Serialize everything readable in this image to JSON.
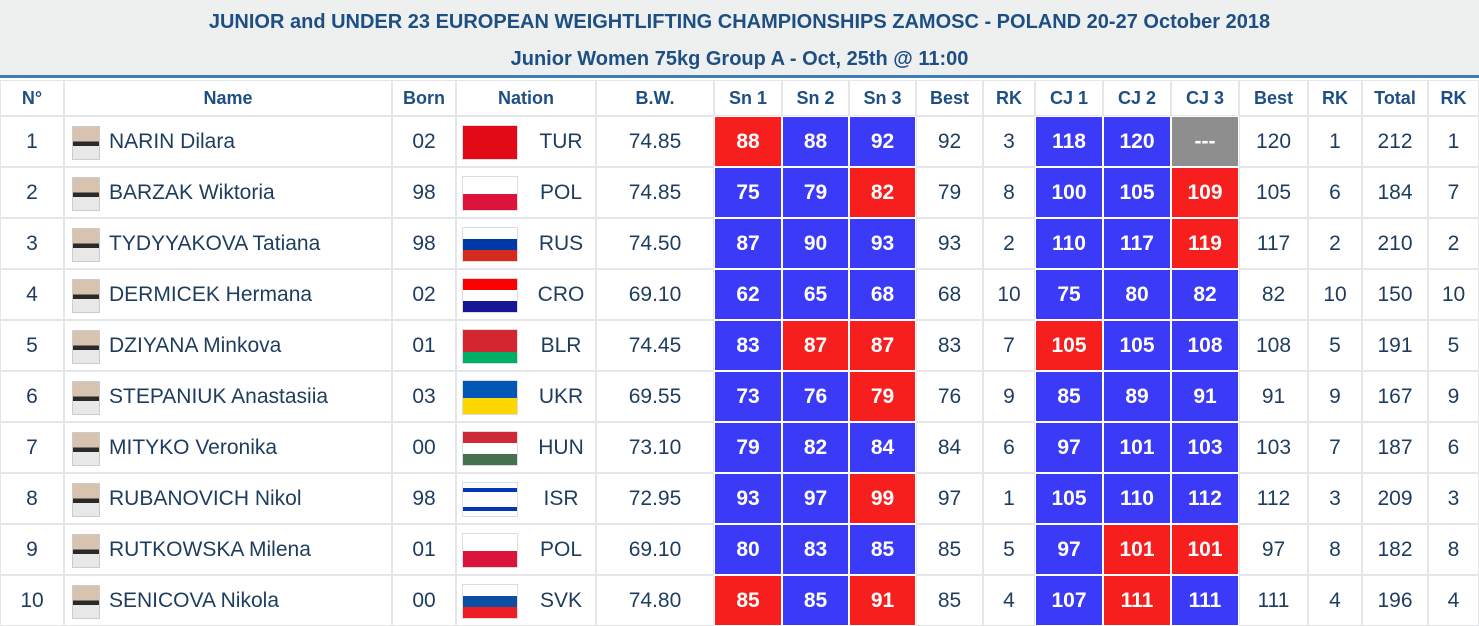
{
  "header": {
    "title": "JUNIOR and UNDER 23 EUROPEAN WEIGHTLIFTING CHAMPIONSHIPS ZAMOSC - POLAND 20-27 October 2018",
    "subtitle": "Junior Women 75kg Group A - Oct, 25th @ 11:00"
  },
  "colors": {
    "good": "#3b3bf7",
    "bad": "#f71e1e",
    "none": "#8e8e8e"
  },
  "table": {
    "columns": [
      "N°",
      "Name",
      "Born",
      "Nation",
      "B.W.",
      "Sn 1",
      "Sn 2",
      "Sn 3",
      "Best",
      "RK",
      "CJ 1",
      "CJ 2",
      "CJ 3",
      "Best",
      "RK",
      "Total",
      "RK"
    ],
    "rows": [
      {
        "cells": [
          "1",
          "NARIN Dilara",
          "02",
          "TUR",
          "74.85",
          "88",
          "88",
          "92",
          "92",
          "3",
          "118",
          "120",
          "---",
          "120",
          "1",
          "212",
          "1"
        ],
        "status": [
          "bad",
          "good",
          "good",
          "good",
          "good",
          "none"
        ],
        "flag": [
          "#e30a17"
        ]
      },
      {
        "cells": [
          "2",
          "BARZAK Wiktoria",
          "98",
          "POL",
          "74.85",
          "75",
          "79",
          "82",
          "79",
          "8",
          "100",
          "105",
          "109",
          "105",
          "6",
          "184",
          "7"
        ],
        "status": [
          "good",
          "good",
          "bad",
          "good",
          "good",
          "bad"
        ],
        "flag": [
          "#ffffff",
          "#dc143c"
        ]
      },
      {
        "cells": [
          "3",
          "TYDYYAKOVA Tatiana",
          "98",
          "RUS",
          "74.50",
          "87",
          "90",
          "93",
          "93",
          "2",
          "110",
          "117",
          "119",
          "117",
          "2",
          "210",
          "2"
        ],
        "status": [
          "good",
          "good",
          "good",
          "good",
          "good",
          "bad"
        ],
        "flag": [
          "#ffffff",
          "#0039a6",
          "#d52b1e"
        ]
      },
      {
        "cells": [
          "4",
          "DERMICEK Hermana",
          "02",
          "CRO",
          "69.10",
          "62",
          "65",
          "68",
          "68",
          "10",
          "75",
          "80",
          "82",
          "82",
          "10",
          "150",
          "10"
        ],
        "status": [
          "good",
          "good",
          "good",
          "good",
          "good",
          "good"
        ],
        "flag": [
          "#ff0000",
          "#ffffff",
          "#171796"
        ]
      },
      {
        "cells": [
          "5",
          "DZIYANA Minkova",
          "01",
          "BLR",
          "74.45",
          "83",
          "87",
          "87",
          "83",
          "7",
          "105",
          "105",
          "108",
          "108",
          "5",
          "191",
          "5"
        ],
        "status": [
          "good",
          "bad",
          "bad",
          "bad",
          "good",
          "good"
        ],
        "flag": [
          "#d22730",
          "#d22730",
          "#00af66"
        ]
      },
      {
        "cells": [
          "6",
          "STEPANIUK Anastasiia",
          "03",
          "UKR",
          "69.55",
          "73",
          "76",
          "79",
          "76",
          "9",
          "85",
          "89",
          "91",
          "91",
          "9",
          "167",
          "9"
        ],
        "status": [
          "good",
          "good",
          "bad",
          "good",
          "good",
          "good"
        ],
        "flag": [
          "#0057b7",
          "#ffd700"
        ]
      },
      {
        "cells": [
          "7",
          "MITYKO Veronika",
          "00",
          "HUN",
          "73.10",
          "79",
          "82",
          "84",
          "84",
          "6",
          "97",
          "101",
          "103",
          "103",
          "7",
          "187",
          "6"
        ],
        "status": [
          "good",
          "good",
          "good",
          "good",
          "good",
          "good"
        ],
        "flag": [
          "#ce2939",
          "#ffffff",
          "#477050"
        ]
      },
      {
        "cells": [
          "8",
          "RUBANOVICH Nikol",
          "98",
          "ISR",
          "72.95",
          "93",
          "97",
          "99",
          "97",
          "1",
          "105",
          "110",
          "112",
          "112",
          "3",
          "209",
          "3"
        ],
        "status": [
          "good",
          "good",
          "bad",
          "good",
          "good",
          "good"
        ],
        "flag": [
          "#ffffff",
          "#0038b8",
          "#ffffff",
          "#ffffff",
          "#ffffff",
          "#0038b8",
          "#ffffff"
        ]
      },
      {
        "cells": [
          "9",
          "RUTKOWSKA Milena",
          "01",
          "POL",
          "69.10",
          "80",
          "83",
          "85",
          "85",
          "5",
          "97",
          "101",
          "101",
          "97",
          "8",
          "182",
          "8"
        ],
        "status": [
          "good",
          "good",
          "good",
          "good",
          "bad",
          "bad"
        ],
        "flag": [
          "#ffffff",
          "#dc143c"
        ]
      },
      {
        "cells": [
          "10",
          "SENICOVA Nikola",
          "00",
          "SVK",
          "74.80",
          "85",
          "85",
          "91",
          "85",
          "4",
          "107",
          "111",
          "111",
          "111",
          "4",
          "196",
          "4"
        ],
        "status": [
          "bad",
          "good",
          "bad",
          "good",
          "bad",
          "good"
        ],
        "flag": [
          "#ffffff",
          "#0b4ea2",
          "#ee1c25"
        ]
      }
    ]
  }
}
